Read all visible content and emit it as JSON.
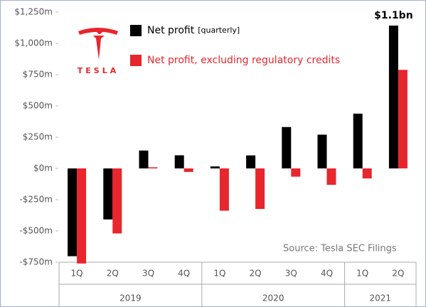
{
  "chart_data": {
    "type": "bar",
    "logo_text": "TESLA",
    "category_groups": [
      {
        "name": "2019",
        "categories": [
          "1Q",
          "2Q",
          "3Q",
          "4Q"
        ]
      },
      {
        "name": "2020",
        "categories": [
          "1Q",
          "2Q",
          "3Q",
          "4Q"
        ]
      },
      {
        "name": "2021",
        "categories": [
          "1Q",
          "2Q"
        ]
      }
    ],
    "series": [
      {
        "name": "Net profit",
        "name_note": "[quarterly]",
        "color": "#000000",
        "values": [
          -702,
          -408,
          143,
          105,
          16,
          104,
          331,
          270,
          438,
          1142
        ]
      },
      {
        "name": "Net profit, excluding regulatory credits",
        "color": "#e8262d",
        "values": [
          -760,
          -520,
          9,
          -28,
          -338,
          -324,
          -66,
          -131,
          -80,
          788
        ]
      }
    ],
    "annotation": {
      "series": 0,
      "index": 9,
      "text": "$1.1bn"
    },
    "source": "Source: Tesla SEC Filings",
    "ylim": [
      -750,
      1250
    ],
    "yticks": [
      {
        "value": -750,
        "label": "-$750m"
      },
      {
        "value": -500,
        "label": "-$500m"
      },
      {
        "value": -250,
        "label": "-$250m"
      },
      {
        "value": 0,
        "label": "$0m"
      },
      {
        "value": 250,
        "label": "$250m"
      },
      {
        "value": 500,
        "label": "$500m"
      },
      {
        "value": 750,
        "label": "$750m"
      },
      {
        "value": 1000,
        "label": "$1,000m"
      },
      {
        "value": 1250,
        "label": "$1,250m"
      }
    ],
    "grid": false
  }
}
